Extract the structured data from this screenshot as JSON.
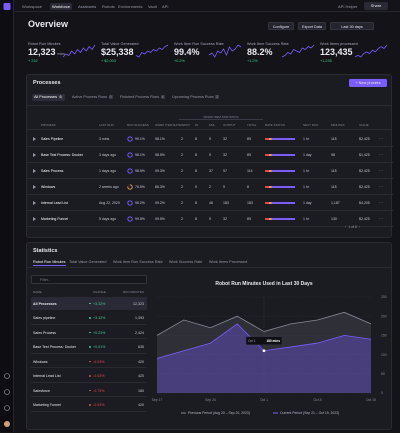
{
  "nav": {
    "tabs": [
      "Workspace",
      "Workforce",
      "Assistants",
      "Robots",
      "Environments",
      "Vault",
      "API"
    ],
    "api_helper": "API Helper",
    "share": "Share"
  },
  "header": {
    "title": "Overview",
    "buttons": [
      "Configure",
      "Export Data",
      "Last 30 days"
    ]
  },
  "kpis": [
    {
      "label": "Robot Run Minutes",
      "value": "12,323",
      "unit": "mins",
      "change": "+ 232",
      "trend": [
        4,
        6,
        5,
        8,
        6,
        9,
        7,
        10,
        8,
        11,
        9,
        12
      ]
    },
    {
      "label": "Total Value Generated",
      "value": "$25,338",
      "change": "+ $2,003",
      "trend": [
        5,
        4,
        7,
        6,
        8,
        7,
        9,
        8,
        10,
        9,
        11,
        12
      ]
    },
    {
      "label": "Work Item Run Success Rate",
      "value": "99.4%",
      "change": "+0.2%",
      "trend": [
        6,
        7,
        5,
        8,
        7,
        9,
        6,
        10,
        8,
        9,
        11,
        10
      ]
    },
    {
      "label": "Work Item Success Rate",
      "value": "88.2%",
      "change": "+1.2%",
      "trend": [
        4,
        5,
        7,
        6,
        9,
        8,
        7,
        10,
        9,
        11,
        10,
        12
      ]
    },
    {
      "label": "Work Items processed",
      "value": "123,435",
      "change": "+1,235",
      "trend": [
        5,
        6,
        5,
        7,
        8,
        7,
        9,
        8,
        10,
        11,
        10,
        12
      ]
    }
  ],
  "processes": {
    "title": "Processes",
    "new_button": "+ New process",
    "tabs": [
      {
        "label": "All Processes",
        "count": "6"
      },
      {
        "label": "Active Process Runs",
        "count": "0"
      },
      {
        "label": "Finished Process Runs",
        "count": "4"
      },
      {
        "label": "Upcoming Process Runs",
        "count": "2"
      }
    ],
    "group_label": "WORK ITEM STATISTICS",
    "columns": [
      "PROCESS",
      "LAST RUN",
      "RUN SUCCESS",
      "WORK ITEM RATE",
      "INPUT",
      "IN",
      "FAIL",
      "OUTPUT",
      "TOTAL",
      "RATE STATUS",
      "NEXT RUN",
      "MINUTES",
      "VALUE"
    ],
    "rows": [
      [
        "Sales Pipeline",
        "3 mins",
        "99.1%",
        "98.1%",
        "2",
        "8",
        "9",
        "32",
        "89",
        "1 hr",
        "118",
        "$2,425"
      ],
      [
        "Base Test Process: Docker",
        "3 days ago",
        "98.1%",
        "98.5%",
        "2",
        "8",
        "9",
        "32",
        "89",
        "1 day",
        "98",
        "$1,425"
      ],
      [
        "Sales Process",
        "1 days ago",
        "98.5%",
        "99.3%",
        "2",
        "8",
        "37",
        "97",
        "114",
        "1 hr",
        "118",
        "$2,425"
      ],
      [
        "Windows",
        "2 weeks ago",
        "76.5%",
        "86.3%",
        "2",
        "9",
        "2",
        "9",
        "8",
        "1 hr",
        "118",
        "$2,425"
      ],
      [
        "Internal Lead List",
        "Aug 22, 2020",
        "95.2%",
        "99.2%",
        "2",
        "8",
        "46",
        "183",
        "183",
        "1 day",
        "1,187",
        "$4,205"
      ],
      [
        "Marketing Funnel",
        "5 days ago",
        "99.5%",
        "99.5%",
        "2",
        "8",
        "9",
        "32",
        "89",
        "1 hr",
        "130",
        "$2,425"
      ]
    ],
    "pagination": "1 of 6"
  },
  "statistics": {
    "title": "Statistics",
    "tabs": [
      "Robot Run Minutes",
      "Total Value Generated",
      "Work Item Run Success Rate",
      "Work Success Rate",
      "Work Items Processed"
    ],
    "filter_placeholder": "Filter...",
    "columns": [
      "NAME",
      "CHANGE",
      "RUN MINUTES"
    ],
    "rows": [
      [
        "All Processes",
        "+3.32%",
        "12,323"
      ],
      [
        "Sales pipeline",
        "+3.12%",
        "1,393"
      ],
      [
        "Sales Process",
        "+0.23%",
        "2,424"
      ],
      [
        "Base Test Process: Docker",
        "+0.01%",
        "635"
      ],
      [
        "Windows",
        "-0.03%",
        "420"
      ],
      [
        "Internal Lead List",
        "-0.03%",
        "420"
      ],
      [
        "Salesforce",
        "-0.73%",
        "180"
      ],
      [
        "Marketing Funnel",
        "-0.93%",
        "420"
      ]
    ],
    "tooltip_text": "180 mins"
  },
  "chart_data": {
    "type": "area",
    "title": "Robot Run Minutes Used in Last 30 Days",
    "categories": [
      "Sep 17",
      null,
      "Sep 24",
      null,
      "Oct 1",
      null,
      "Oct 8",
      null,
      "Oct 15"
    ],
    "series": [
      {
        "name": "Previous Period (Aug 20 – Sep 20, 2023)",
        "color": "#8a8a99",
        "values": [
          150,
          190,
          170,
          200,
          160,
          180,
          190,
          210,
          180
        ]
      },
      {
        "name": "Current Period (Sep 21 – Oct 19, 2023)",
        "color": "#7b5cff",
        "values": [
          90,
          110,
          130,
          180,
          110,
          120,
          130,
          150,
          140
        ]
      }
    ],
    "ylim": [
      0,
      250
    ],
    "yticks": [
      0,
      50,
      100,
      150,
      200,
      250
    ],
    "grid": true
  }
}
